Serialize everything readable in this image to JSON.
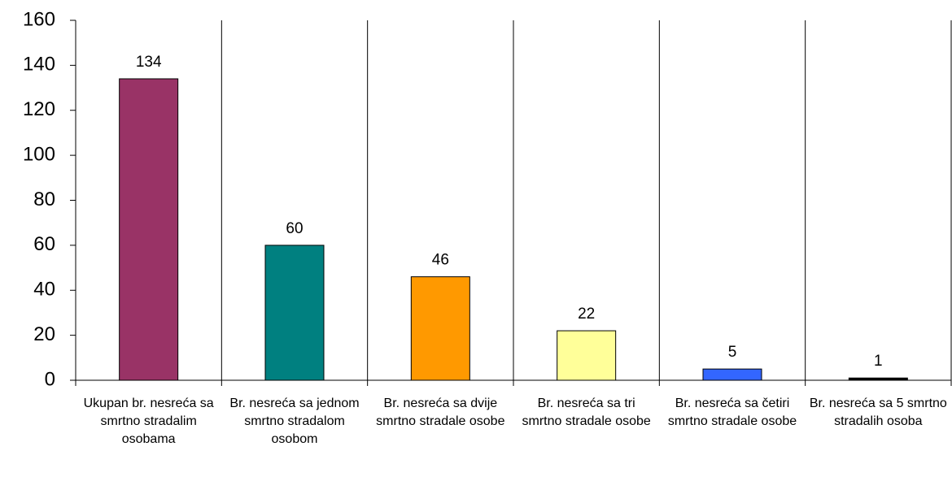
{
  "chart_data": {
    "type": "bar",
    "categories": [
      "Ukupan br. nesreća sa smrtno stradalim osobama",
      "Br. nesreća sa jednom smrtno stradalom osobom",
      "Br. nesreća sa dvije smrtno stradale osobe",
      "Br. nesreća sa tri smrtno stradale osobe",
      "Br. nesreća sa četiri smrtno stradale osobe",
      "Br. nesreća sa 5 smrtno stradalih osoba"
    ],
    "values": [
      134,
      60,
      46,
      22,
      5,
      1
    ],
    "colors": [
      "#993366",
      "#008080",
      "#ff9900",
      "#ffff99",
      "#3366ff",
      "#000000"
    ],
    "ylim": [
      0,
      160
    ],
    "yticks": [
      0,
      20,
      40,
      60,
      80,
      100,
      120,
      140,
      160
    ],
    "grid": false,
    "data_labels": true
  }
}
